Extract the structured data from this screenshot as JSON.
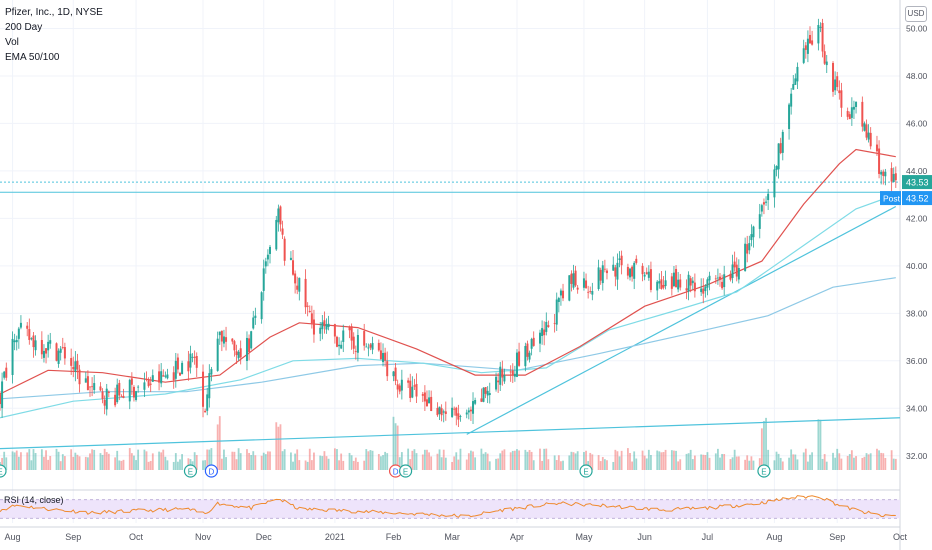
{
  "legend": {
    "symbol": "Pfizer, Inc., 1D, NYSE",
    "ma": "200 Day",
    "vol": "Vol",
    "ema": "EMA 50/100"
  },
  "currency_button": "USD",
  "rsi_label": "RSI (14, close)",
  "colors": {
    "up": "#26a69a",
    "down": "#ef5350",
    "ema50": "#e0524f",
    "ema100": "#7fdbe6",
    "ma200": "#8ec9e6",
    "trendline": "#4fc3dc",
    "rsi_line": "#ef8a2f",
    "rsi_band": "#eee4fb",
    "price_tag": "#26a69a",
    "post_tag": "#2196f3"
  },
  "tags": {
    "last_price": "43.53",
    "post_label": "Post",
    "post_price": "43.52"
  },
  "chart_data": {
    "type": "candlestick",
    "title": "Pfizer, Inc., 1D, NYSE",
    "x_ticks": [
      "Aug",
      "Sep",
      "Oct",
      "Nov",
      "Dec",
      "2021",
      "Feb",
      "Mar",
      "Apr",
      "May",
      "Jun",
      "Jul",
      "Aug",
      "Sep",
      "Oct"
    ],
    "x_range": [
      "2020-07-28",
      "2021-10-01"
    ],
    "y_ticks": [
      "32.00",
      "34.00",
      "36.00",
      "38.00",
      "40.00",
      "42.00",
      "44.00",
      "46.00",
      "48.00",
      "50.00"
    ],
    "ylim": [
      31.4,
      51.2
    ],
    "last_price": 43.53,
    "post_market_price": 43.52,
    "close_path": [
      [
        "2020-07-28",
        34.5
      ],
      [
        "2020-08-04",
        37.3
      ],
      [
        "2020-08-12",
        36.9
      ],
      [
        "2020-08-20",
        36.6
      ],
      [
        "2020-08-28",
        36.3
      ],
      [
        "2020-09-04",
        35.3
      ],
      [
        "2020-09-12",
        34.6
      ],
      [
        "2020-09-20",
        34.5
      ],
      [
        "2020-09-28",
        34.8
      ],
      [
        "2020-10-06",
        35.0
      ],
      [
        "2020-10-14",
        35.3
      ],
      [
        "2020-10-22",
        35.8
      ],
      [
        "2020-10-29",
        36.1
      ],
      [
        "2020-11-03",
        34.1
      ],
      [
        "2020-11-09",
        37.3
      ],
      [
        "2020-11-16",
        36.4
      ],
      [
        "2020-11-24",
        36.7
      ],
      [
        "2020-12-01",
        39.5
      ],
      [
        "2020-12-08",
        42.1
      ],
      [
        "2020-12-11",
        40.5
      ],
      [
        "2020-12-17",
        39.3
      ],
      [
        "2020-12-24",
        37.6
      ],
      [
        "2021-01-04",
        37.0
      ],
      [
        "2021-01-14",
        36.8
      ],
      [
        "2021-01-24",
        36.4
      ],
      [
        "2021-01-29",
        35.8
      ],
      [
        "2021-02-04",
        34.9
      ],
      [
        "2021-02-16",
        34.4
      ],
      [
        "2021-02-26",
        33.8
      ],
      [
        "2021-03-08",
        33.5
      ],
      [
        "2021-03-18",
        34.8
      ],
      [
        "2021-03-31",
        35.9
      ],
      [
        "2021-04-12",
        36.8
      ],
      [
        "2021-04-20",
        38.2
      ],
      [
        "2021-04-28",
        39.5
      ],
      [
        "2021-05-06",
        39.2
      ],
      [
        "2021-05-14",
        39.9
      ],
      [
        "2021-05-24",
        39.9
      ],
      [
        "2021-06-02",
        39.6
      ],
      [
        "2021-06-10",
        38.9
      ],
      [
        "2021-06-18",
        39.5
      ],
      [
        "2021-06-28",
        39.1
      ],
      [
        "2021-07-06",
        39.2
      ],
      [
        "2021-07-15",
        39.9
      ],
      [
        "2021-07-23",
        41.3
      ],
      [
        "2021-07-30",
        42.9
      ],
      [
        "2021-08-05",
        45.2
      ],
      [
        "2021-08-12",
        47.8
      ],
      [
        "2021-08-18",
        49.2
      ],
      [
        "2021-08-23",
        50.3
      ],
      [
        "2021-08-27",
        48.4
      ],
      [
        "2021-09-03",
        46.8
      ],
      [
        "2021-09-10",
        46.5
      ],
      [
        "2021-09-17",
        45.2
      ],
      [
        "2021-09-24",
        43.6
      ],
      [
        "2021-09-29",
        43.5
      ]
    ],
    "ema50": [
      [
        "2020-07-28",
        34.6
      ],
      [
        "2020-08-20",
        35.6
      ],
      [
        "2020-09-15",
        35.5
      ],
      [
        "2020-10-15",
        35.1
      ],
      [
        "2020-11-10",
        35.4
      ],
      [
        "2020-12-04",
        37.0
      ],
      [
        "2020-12-18",
        37.6
      ],
      [
        "2021-01-15",
        37.4
      ],
      [
        "2021-02-12",
        36.5
      ],
      [
        "2021-03-12",
        35.4
      ],
      [
        "2021-04-05",
        35.4
      ],
      [
        "2021-05-01",
        36.6
      ],
      [
        "2021-06-01",
        38.3
      ],
      [
        "2021-07-01",
        39.2
      ],
      [
        "2021-07-27",
        40.2
      ],
      [
        "2021-08-16",
        42.6
      ],
      [
        "2021-09-02",
        44.3
      ],
      [
        "2021-09-10",
        44.9
      ],
      [
        "2021-09-29",
        44.6
      ]
    ],
    "ema100": [
      [
        "2020-07-28",
        33.6
      ],
      [
        "2020-09-01",
        34.3
      ],
      [
        "2020-10-15",
        34.6
      ],
      [
        "2020-11-20",
        35.2
      ],
      [
        "2020-12-15",
        36.0
      ],
      [
        "2021-01-15",
        36.1
      ],
      [
        "2021-02-15",
        35.9
      ],
      [
        "2021-03-15",
        35.5
      ],
      [
        "2021-04-15",
        35.7
      ],
      [
        "2021-05-15",
        37.3
      ],
      [
        "2021-06-15",
        38.1
      ],
      [
        "2021-07-15",
        38.9
      ],
      [
        "2021-08-15",
        40.8
      ],
      [
        "2021-09-10",
        42.4
      ],
      [
        "2021-09-29",
        43.0
      ]
    ],
    "ma200": [
      [
        "2020-07-28",
        34.4
      ],
      [
        "2020-09-15",
        34.7
      ],
      [
        "2020-10-25",
        34.7
      ],
      [
        "2020-11-30",
        35.1
      ],
      [
        "2021-01-15",
        35.8
      ],
      [
        "2021-02-15",
        35.9
      ],
      [
        "2021-04-01",
        35.6
      ],
      [
        "2021-05-10",
        36.3
      ],
      [
        "2021-06-20",
        37.1
      ],
      [
        "2021-07-30",
        37.9
      ],
      [
        "2021-08-30",
        39.1
      ],
      [
        "2021-09-29",
        39.5
      ]
    ],
    "horizontal_lines": [
      {
        "y": 43.53,
        "style": "dotted"
      },
      {
        "y": 43.1,
        "style": "solid"
      }
    ],
    "trendlines": [
      {
        "from": [
          "2020-07-28",
          32.3
        ],
        "to": [
          "2021-10-01",
          33.6
        ]
      },
      {
        "from": [
          "2021-03-08",
          32.9
        ],
        "to": [
          "2021-09-29",
          42.5
        ]
      }
    ],
    "volume": {
      "pattern": "bars on the bottom of the main pane, heights are relative",
      "spikes": [
        "2020-11-09",
        "2020-12-08",
        "2021-02-02",
        "2021-07-28",
        "2021-08-23"
      ]
    },
    "earnings_markers": [
      {
        "date": "2020-07-28",
        "letter": "E"
      },
      {
        "date": "2020-10-27",
        "letter": "E"
      },
      {
        "date": "2020-11-06",
        "letter": "D"
      },
      {
        "date": "2021-02-02",
        "letter": "D"
      },
      {
        "date": "2021-02-02",
        "letter": "E"
      },
      {
        "date": "2021-05-04",
        "letter": "E"
      },
      {
        "date": "2021-07-28",
        "letter": "E"
      }
    ],
    "rsi": {
      "label": "RSI (14, close)",
      "ylim": [
        20,
        80
      ],
      "band": [
        30,
        70
      ],
      "values": [
        [
          "2020-07-28",
          48
        ],
        [
          "2020-08-05",
          58
        ],
        [
          "2020-08-20",
          50
        ],
        [
          "2020-09-10",
          42
        ],
        [
          "2020-10-01",
          46
        ],
        [
          "2020-10-25",
          50
        ],
        [
          "2020-11-03",
          40
        ],
        [
          "2020-11-09",
          62
        ],
        [
          "2020-11-25",
          52
        ],
        [
          "2020-12-08",
          72
        ],
        [
          "2020-12-18",
          50
        ],
        [
          "2021-01-10",
          46
        ],
        [
          "2021-01-30",
          42
        ],
        [
          "2021-02-20",
          38
        ],
        [
          "2021-03-08",
          34
        ],
        [
          "2021-03-25",
          48
        ],
        [
          "2021-04-20",
          62
        ],
        [
          "2021-05-10",
          58
        ],
        [
          "2021-06-10",
          48
        ],
        [
          "2021-07-01",
          52
        ],
        [
          "2021-07-25",
          62
        ],
        [
          "2021-08-10",
          74
        ],
        [
          "2021-08-23",
          78
        ],
        [
          "2021-09-03",
          56
        ],
        [
          "2021-09-15",
          42
        ],
        [
          "2021-09-24",
          34
        ],
        [
          "2021-09-29",
          36
        ]
      ]
    }
  }
}
